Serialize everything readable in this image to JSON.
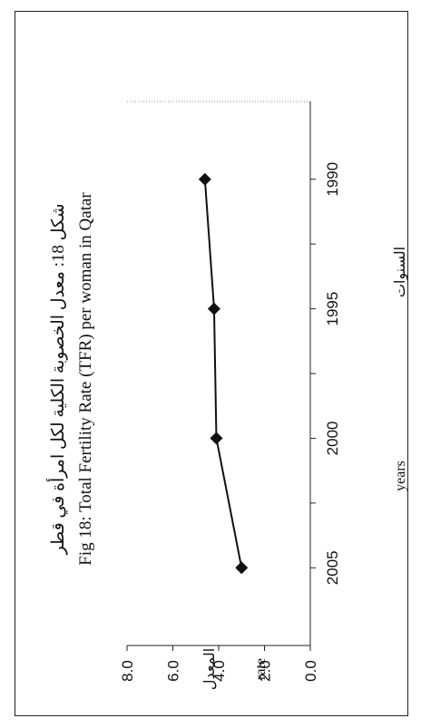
{
  "chart_data": {
    "type": "line",
    "title_ar": "شكل 18:  معدل الخصوبة الكلية لكل امرأة في قطر",
    "title": "Fig 18: Total Fertility Rate (TFR) per woman in Qatar",
    "xlabel": "years",
    "xlabel_ar": "السنوات",
    "ylabel": "rate",
    "ylabel_ar": "المعدل",
    "xlim": [
      1987,
      2008
    ],
    "ylim": [
      0,
      8
    ],
    "x_ticks": [
      1990,
      1995,
      2000,
      2005
    ],
    "y_ticks": [
      "0.0",
      "2.0",
      "4.0",
      "6.0",
      "8.0"
    ],
    "series": [
      {
        "x": [
          1990,
          1995,
          2000,
          2005
        ],
        "values": [
          4.6,
          4.2,
          4.1,
          3.0
        ]
      }
    ],
    "grid": false,
    "orientation": "rotated-90-ccw"
  }
}
